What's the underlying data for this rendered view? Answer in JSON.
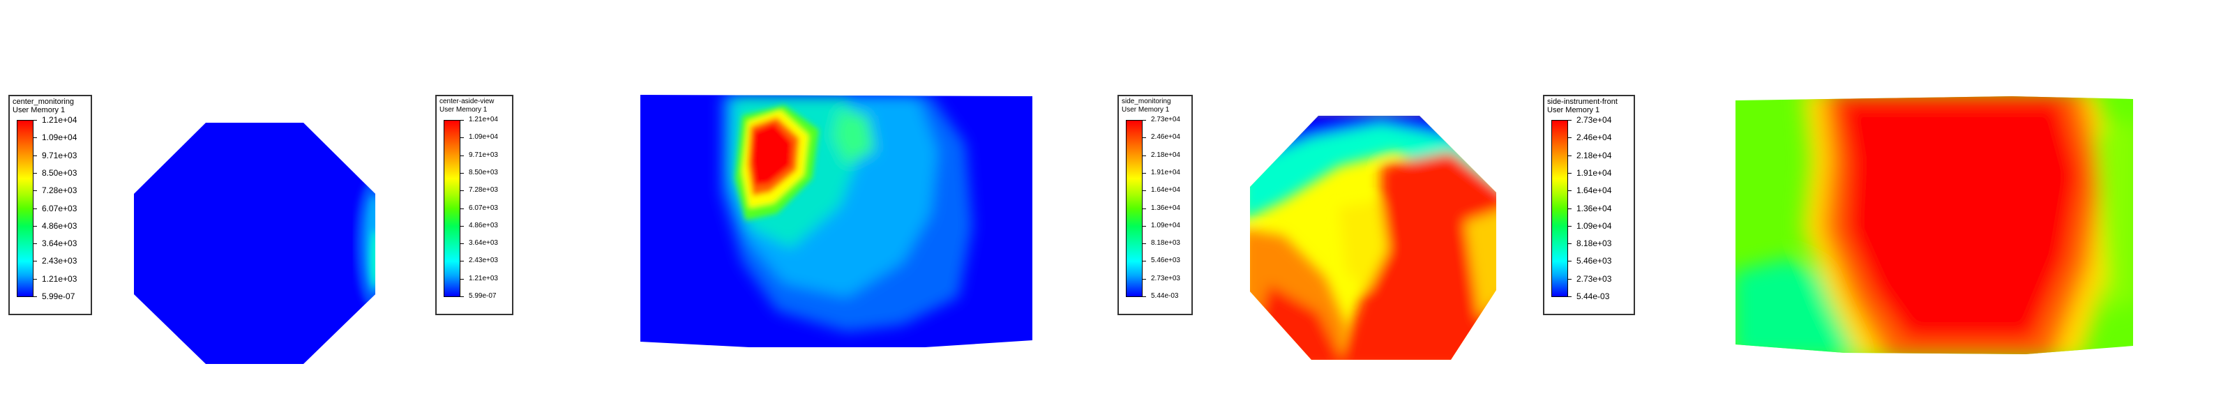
{
  "legends": [
    {
      "id": "center-monitoring",
      "title": "center_monitoring",
      "subtitle": "User Memory 1",
      "labels": [
        "1.21e+04",
        "1.09e+04",
        "9.71e+03",
        "8.50e+03",
        "7.28e+03",
        "6.07e+03",
        "4.86e+03",
        "3.64e+03",
        "2.43e+03",
        "1.21e+03",
        "5.99e-07"
      ]
    },
    {
      "id": "center-aside-view",
      "title": "center-aside-view",
      "subtitle": "User Memory 1",
      "labels": [
        "1.21e+04",
        "1.09e+04",
        "9.71e+03",
        "8.50e+03",
        "7.28e+03",
        "6.07e+03",
        "4.86e+03",
        "3.64e+03",
        "2.43e+03",
        "1.21e+03",
        "5.99e-07"
      ]
    },
    {
      "id": "side-monitoring",
      "title": "side_monitoring",
      "subtitle": "User Memory 1",
      "labels": [
        "2.73e+04",
        "2.46e+04",
        "2.18e+04",
        "1.91e+04",
        "1.64e+04",
        "1.36e+04",
        "1.09e+04",
        "8.18e+03",
        "5.46e+03",
        "2.73e+03",
        "5.44e-03"
      ]
    },
    {
      "id": "side-instrument-front",
      "title": "side-instrument-front",
      "subtitle": "User Memory 1",
      "labels": [
        "2.73e+04",
        "2.46e+04",
        "2.18e+04",
        "1.91e+04",
        "1.64e+04",
        "1.36e+04",
        "1.09e+04",
        "8.18e+03",
        "5.46e+03",
        "2.73e+03",
        "5.44e-03"
      ]
    }
  ],
  "colors": {
    "max": "#ff0000",
    "high": "#ffff00",
    "mid": "#00ff00",
    "low": "#00ffff",
    "min": "#0000ff"
  }
}
